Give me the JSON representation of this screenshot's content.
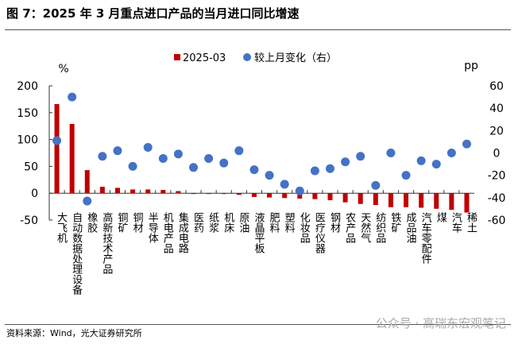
{
  "title": "图 7：2025 年 3 月重点进口产品的当月进口同比增速",
  "source": "资料来源：Wind，光大证券研究所",
  "watermark": "公众号 · 高瑞东宏观笔记",
  "chart_data": {
    "type": "bar+scatter",
    "left_unit": "%",
    "right_unit": "pp",
    "left_ylim": [
      -50,
      200
    ],
    "left_ticks": [
      -50,
      0,
      50,
      100,
      150,
      200
    ],
    "right_ylim": [
      -60,
      60
    ],
    "right_ticks": [
      -60,
      -40,
      -20,
      0,
      20,
      40,
      60
    ],
    "legend_position": "top",
    "categories": [
      "大飞机",
      "自动数据处理设备",
      "橡胶",
      "高新技术产品",
      "铜矿",
      "铜材",
      "半导体",
      "机电产品",
      "集成电路",
      "医药",
      "纸浆",
      "机床",
      "原油",
      "液晶平板",
      "肥料",
      "塑料",
      "化妆品",
      "医疗仪器",
      "钢材",
      "农产品",
      "天然气",
      "纺织品",
      "铁矿",
      "成品油",
      "汽车零配件",
      "煤",
      "汽车",
      "稀土"
    ],
    "series": [
      {
        "name": "2025-03",
        "type": "bar",
        "axis": "left",
        "color": "#C00000",
        "values": [
          166,
          129,
          43,
          12,
          10,
          7,
          7,
          6,
          4,
          -0.5,
          -1,
          -1,
          -3,
          -7,
          -8,
          -9,
          -10,
          -11,
          -13,
          -17,
          -20,
          -22,
          -26,
          -26,
          -27,
          -29,
          -31,
          -36
        ]
      },
      {
        "name": "较上月变化（右）",
        "type": "scatter",
        "axis": "right",
        "color": "#4472C4",
        "values": [
          11,
          50,
          -43,
          -3,
          2,
          -12,
          5,
          -5,
          -1,
          -13,
          -5,
          -9,
          2,
          -15,
          -20,
          -28,
          -34,
          -16,
          -14,
          -8,
          -3,
          -29,
          0,
          -20,
          -7,
          -10,
          0,
          8
        ]
      }
    ]
  }
}
